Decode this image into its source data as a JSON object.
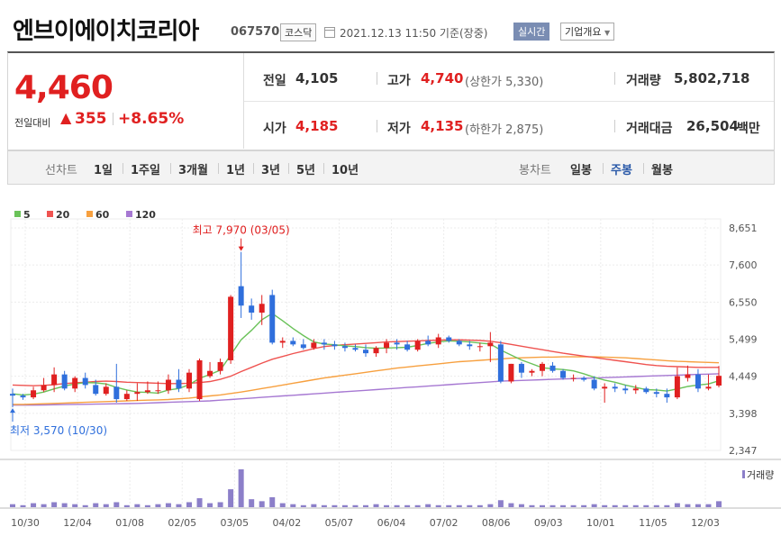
{
  "header": {
    "company_name": "엔브이에이치코리아",
    "code": "067570",
    "market": "코스닥",
    "datetime": "2021.12.13 11:50  기준(장중)",
    "realtime": "실시간",
    "company_info": "기업개요"
  },
  "quote": {
    "price": "4,460",
    "change_label": "전일대비",
    "change_arrow": "▲",
    "change_amount": "355",
    "change_pct": "+8.65%",
    "prev_close_label": "전일",
    "prev_close": "4,105",
    "high_label": "고가",
    "high": "4,740",
    "upper_limit": "(상한가 5,330)",
    "volume_label": "거래량",
    "volume": "5,802,718",
    "open_label": "시가",
    "open": "4,185",
    "low_label": "저가",
    "low": "4,135",
    "lower_limit": "(하한가 2,875)",
    "trade_value_label": "거래대금",
    "trade_value": "26,504",
    "trade_value_unit": "백만"
  },
  "toolbar": {
    "line_label": "선차트",
    "line_periods": [
      "1일",
      "1주일",
      "3개월",
      "1년",
      "3년",
      "5년",
      "10년"
    ],
    "candle_label": "봉차트",
    "candle_periods": [
      "일봉",
      "주봉",
      "월봉"
    ],
    "active_candle": "주봉"
  },
  "colors": {
    "up": "#e02020",
    "down": "#2f6fdc",
    "ma5": "#6ac259",
    "ma20": "#ef5350",
    "ma60": "#f7a03f",
    "ma120": "#a678d2",
    "volume": "#8c7fc9",
    "active": "#2a59a8"
  },
  "chart_data": {
    "type": "candlestick",
    "legend": [
      "5",
      "20",
      "60",
      "120"
    ],
    "y_ticks": [
      "8,651",
      "7,600",
      "6,550",
      "5,499",
      "4,449",
      "3,398",
      "2,347"
    ],
    "ylim": [
      2347,
      8651
    ],
    "x_labels": [
      "10/30",
      "12/04",
      "01/08",
      "02/05",
      "03/05",
      "04/02",
      "05/07",
      "06/04",
      "07/02",
      "08/06",
      "09/03",
      "10/01",
      "11/05",
      "12/03"
    ],
    "max_annotation": "최고 7,970 (03/05)",
    "min_annotation": "최저 3,570 (10/30)",
    "volume_label": "거래량",
    "candles": [
      {
        "o": 3950,
        "h": 4100,
        "l": 3570,
        "c": 3900
      },
      {
        "o": 3900,
        "h": 3950,
        "l": 3780,
        "c": 3850
      },
      {
        "o": 3850,
        "h": 4150,
        "l": 3800,
        "c": 4050
      },
      {
        "o": 4050,
        "h": 4400,
        "l": 4000,
        "c": 4200
      },
      {
        "o": 4200,
        "h": 4700,
        "l": 4000,
        "c": 4500
      },
      {
        "o": 4500,
        "h": 4600,
        "l": 4050,
        "c": 4100
      },
      {
        "o": 4100,
        "h": 4450,
        "l": 4000,
        "c": 4400
      },
      {
        "o": 4400,
        "h": 4550,
        "l": 4100,
        "c": 4200
      },
      {
        "o": 4200,
        "h": 4350,
        "l": 3900,
        "c": 3950
      },
      {
        "o": 3950,
        "h": 4250,
        "l": 3900,
        "c": 4150
      },
      {
        "o": 4150,
        "h": 4800,
        "l": 3700,
        "c": 3800
      },
      {
        "o": 3800,
        "h": 4050,
        "l": 3750,
        "c": 3950
      },
      {
        "o": 3950,
        "h": 4250,
        "l": 3750,
        "c": 4000
      },
      {
        "o": 4000,
        "h": 4300,
        "l": 3950,
        "c": 4050
      },
      {
        "o": 4050,
        "h": 4300,
        "l": 3950,
        "c": 4050
      },
      {
        "o": 4050,
        "h": 4500,
        "l": 3950,
        "c": 4350
      },
      {
        "o": 4350,
        "h": 4650,
        "l": 4000,
        "c": 4100
      },
      {
        "o": 4100,
        "h": 4650,
        "l": 4000,
        "c": 4550
      },
      {
        "o": 3800,
        "h": 4950,
        "l": 3750,
        "c": 4900
      },
      {
        "o": 4450,
        "h": 4850,
        "l": 4400,
        "c": 4600
      },
      {
        "o": 4600,
        "h": 4950,
        "l": 4500,
        "c": 4850
      },
      {
        "o": 4900,
        "h": 6750,
        "l": 4800,
        "c": 6700
      },
      {
        "o": 7000,
        "h": 7970,
        "l": 6100,
        "c": 6450
      },
      {
        "o": 6450,
        "h": 6650,
        "l": 6050,
        "c": 6250
      },
      {
        "o": 6250,
        "h": 6750,
        "l": 5900,
        "c": 6500
      },
      {
        "o": 6750,
        "h": 6900,
        "l": 5350,
        "c": 5400
      },
      {
        "o": 5400,
        "h": 5550,
        "l": 5250,
        "c": 5450
      },
      {
        "o": 5450,
        "h": 5550,
        "l": 5300,
        "c": 5350
      },
      {
        "o": 5350,
        "h": 5500,
        "l": 5200,
        "c": 5250
      },
      {
        "o": 5250,
        "h": 5500,
        "l": 5200,
        "c": 5400
      },
      {
        "o": 5400,
        "h": 5500,
        "l": 5200,
        "c": 5350
      },
      {
        "o": 5350,
        "h": 5450,
        "l": 5200,
        "c": 5300
      },
      {
        "o": 5300,
        "h": 5400,
        "l": 5150,
        "c": 5250
      },
      {
        "o": 5250,
        "h": 5350,
        "l": 5150,
        "c": 5200
      },
      {
        "o": 5200,
        "h": 5350,
        "l": 5000,
        "c": 5100
      },
      {
        "o": 5100,
        "h": 5300,
        "l": 5000,
        "c": 5250
      },
      {
        "o": 5250,
        "h": 5500,
        "l": 5100,
        "c": 5400
      },
      {
        "o": 5400,
        "h": 5500,
        "l": 5200,
        "c": 5350
      },
      {
        "o": 5350,
        "h": 5450,
        "l": 5150,
        "c": 5200
      },
      {
        "o": 5200,
        "h": 5500,
        "l": 5150,
        "c": 5450
      },
      {
        "o": 5450,
        "h": 5600,
        "l": 5300,
        "c": 5350
      },
      {
        "o": 5350,
        "h": 5650,
        "l": 5250,
        "c": 5550
      },
      {
        "o": 5550,
        "h": 5600,
        "l": 5400,
        "c": 5450
      },
      {
        "o": 5450,
        "h": 5500,
        "l": 5300,
        "c": 5350
      },
      {
        "o": 5350,
        "h": 5450,
        "l": 5200,
        "c": 5300
      },
      {
        "o": 5300,
        "h": 5400,
        "l": 5150,
        "c": 5300
      },
      {
        "o": 5300,
        "h": 5700,
        "l": 4850,
        "c": 5400
      },
      {
        "o": 5350,
        "h": 5450,
        "l": 4250,
        "c": 4300
      },
      {
        "o": 4300,
        "h": 4800,
        "l": 4250,
        "c": 4800
      },
      {
        "o": 4800,
        "h": 4850,
        "l": 4400,
        "c": 4550
      },
      {
        "o": 4550,
        "h": 4650,
        "l": 4450,
        "c": 4600
      },
      {
        "o": 4600,
        "h": 4850,
        "l": 4450,
        "c": 4800
      },
      {
        "o": 4750,
        "h": 4850,
        "l": 4550,
        "c": 4600
      },
      {
        "o": 4600,
        "h": 4650,
        "l": 4350,
        "c": 4400
      },
      {
        "o": 4400,
        "h": 4500,
        "l": 4300,
        "c": 4400
      },
      {
        "o": 4400,
        "h": 4450,
        "l": 4300,
        "c": 4350
      },
      {
        "o": 4350,
        "h": 4450,
        "l": 4050,
        "c": 4100
      },
      {
        "o": 4100,
        "h": 4250,
        "l": 3700,
        "c": 4150
      },
      {
        "o": 4150,
        "h": 4250,
        "l": 4000,
        "c": 4100
      },
      {
        "o": 4100,
        "h": 4200,
        "l": 3950,
        "c": 4050
      },
      {
        "o": 4050,
        "h": 4200,
        "l": 3950,
        "c": 4100
      },
      {
        "o": 4100,
        "h": 4150,
        "l": 3950,
        "c": 4000
      },
      {
        "o": 4000,
        "h": 4100,
        "l": 3850,
        "c": 3950
      },
      {
        "o": 3950,
        "h": 4100,
        "l": 3700,
        "c": 3850
      },
      {
        "o": 3850,
        "h": 4700,
        "l": 3800,
        "c": 4450
      },
      {
        "o": 4400,
        "h": 4750,
        "l": 4300,
        "c": 4500
      },
      {
        "o": 4500,
        "h": 4650,
        "l": 4000,
        "c": 4100
      },
      {
        "o": 4100,
        "h": 4500,
        "l": 4050,
        "c": 4150
      },
      {
        "o": 4185,
        "h": 4740,
        "l": 4135,
        "c": 4460
      }
    ],
    "ma5": [
      3950,
      3920,
      3940,
      4000,
      4090,
      4170,
      4230,
      4270,
      4260,
      4230,
      4130,
      4060,
      4000,
      3990,
      3970,
      4060,
      4100,
      4210,
      4390,
      4500,
      4620,
      5050,
      5480,
      5750,
      6050,
      6230,
      6020,
      5800,
      5600,
      5420,
      5360,
      5340,
      5310,
      5290,
      5260,
      5240,
      5250,
      5260,
      5270,
      5320,
      5380,
      5420,
      5450,
      5440,
      5420,
      5390,
      5360,
      5190,
      5050,
      4910,
      4800,
      4690,
      4660,
      4640,
      4600,
      4520,
      4420,
      4340,
      4280,
      4200,
      4130,
      4070,
      4060,
      4030,
      4090,
      4160,
      4200,
      4230,
      4320
    ],
    "ma20": [
      4200,
      4190,
      4180,
      4190,
      4210,
      4240,
      4260,
      4280,
      4300,
      4310,
      4300,
      4280,
      4270,
      4260,
      4250,
      4240,
      4240,
      4250,
      4270,
      4300,
      4360,
      4450,
      4580,
      4700,
      4820,
      4930,
      5010,
      5090,
      5160,
      5230,
      5290,
      5320,
      5340,
      5360,
      5380,
      5400,
      5420,
      5430,
      5440,
      5450,
      5460,
      5470,
      5480,
      5480,
      5470,
      5460,
      5440,
      5400,
      5350,
      5300,
      5250,
      5200,
      5150,
      5100,
      5060,
      5020,
      4980,
      4940,
      4900,
      4860,
      4820,
      4780,
      4750,
      4730,
      4720,
      4710,
      4700,
      4700,
      4700
    ],
    "ma60": [
      3650,
      3650,
      3660,
      3670,
      3680,
      3690,
      3700,
      3710,
      3720,
      3730,
      3740,
      3750,
      3760,
      3770,
      3780,
      3790,
      3810,
      3830,
      3860,
      3890,
      3920,
      3960,
      4000,
      4050,
      4100,
      4150,
      4200,
      4250,
      4300,
      4350,
      4400,
      4440,
      4480,
      4520,
      4560,
      4600,
      4640,
      4680,
      4710,
      4740,
      4770,
      4800,
      4830,
      4860,
      4880,
      4900,
      4920,
      4940,
      4960,
      4970,
      4980,
      4990,
      4990,
      5000,
      5000,
      5000,
      5000,
      4990,
      4980,
      4970,
      4950,
      4930,
      4910,
      4890,
      4870,
      4860,
      4850,
      4840,
      4830
    ],
    "ma120": [
      3630,
      3630,
      3630,
      3635,
      3640,
      3645,
      3650,
      3655,
      3660,
      3665,
      3670,
      3675,
      3680,
      3690,
      3700,
      3710,
      3720,
      3730,
      3740,
      3750,
      3770,
      3790,
      3810,
      3830,
      3850,
      3870,
      3890,
      3910,
      3930,
      3950,
      3970,
      3990,
      4010,
      4030,
      4050,
      4070,
      4090,
      4110,
      4130,
      4150,
      4170,
      4190,
      4210,
      4230,
      4250,
      4270,
      4290,
      4310,
      4320,
      4330,
      4340,
      4350,
      4360,
      4370,
      4380,
      4390,
      4400,
      4410,
      4420,
      4430,
      4440,
      4450,
      4460,
      4470,
      4480,
      4490,
      4500,
      4510,
      4520
    ],
    "volumes": [
      3,
      2,
      4,
      3,
      5,
      4,
      3,
      2,
      4,
      3,
      5,
      2,
      3,
      2,
      3,
      4,
      3,
      5,
      9,
      4,
      5,
      18,
      38,
      8,
      6,
      10,
      4,
      3,
      2,
      3,
      2,
      2,
      2,
      2,
      2,
      3,
      2,
      2,
      2,
      2,
      3,
      2,
      2,
      2,
      2,
      2,
      3,
      7,
      4,
      3,
      2,
      2,
      2,
      2,
      2,
      2,
      3,
      2,
      2,
      2,
      2,
      2,
      2,
      2,
      4,
      3,
      3,
      3,
      6
    ]
  }
}
